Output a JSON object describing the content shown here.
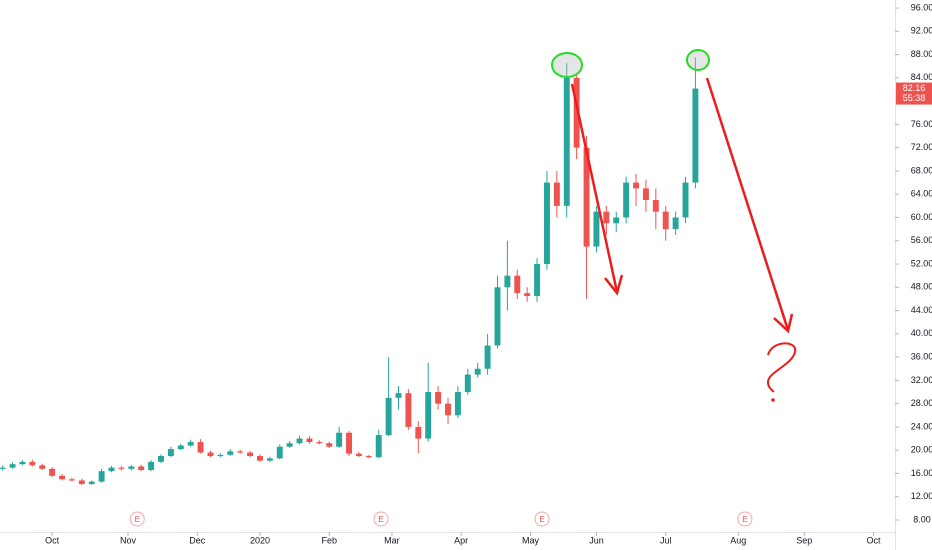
{
  "chart_data": {
    "type": "candlestick",
    "up_color": "#26a69a",
    "down_color": "#ef5350",
    "grid": false,
    "xlim": [
      -15.8,
      255.5
    ],
    "ylim": [
      5.94,
      97.38
    ],
    "xticks": [
      {
        "value": 0,
        "label": "Oct"
      },
      {
        "value": 23,
        "label": "Nov"
      },
      {
        "value": 44,
        "label": "Dec"
      },
      {
        "value": 63,
        "label": "2020"
      },
      {
        "value": 84,
        "label": "Feb"
      },
      {
        "value": 103,
        "label": "Mar"
      },
      {
        "value": 124,
        "label": "Apr"
      },
      {
        "value": 145,
        "label": "May"
      },
      {
        "value": 165,
        "label": "Jun"
      },
      {
        "value": 186,
        "label": "Jul"
      },
      {
        "value": 208,
        "label": "Aug"
      },
      {
        "value": 228,
        "label": "Sep"
      },
      {
        "value": 249,
        "label": "Oct"
      }
    ],
    "yticks": [
      {
        "value": 8,
        "label": "8.00"
      },
      {
        "value": 12,
        "label": "12.00"
      },
      {
        "value": 16,
        "label": "16.00"
      },
      {
        "value": 20,
        "label": "20.00"
      },
      {
        "value": 24,
        "label": "24.00"
      },
      {
        "value": 28,
        "label": "28.00"
      },
      {
        "value": 32,
        "label": "32.00"
      },
      {
        "value": 36,
        "label": "36.00"
      },
      {
        "value": 40,
        "label": "40.00"
      },
      {
        "value": 44,
        "label": "44.00"
      },
      {
        "value": 48,
        "label": "48.00"
      },
      {
        "value": 52,
        "label": "52.00"
      },
      {
        "value": 56,
        "label": "56.00"
      },
      {
        "value": 60,
        "label": "60.00"
      },
      {
        "value": 64,
        "label": "64.00"
      },
      {
        "value": 68,
        "label": "68.00"
      },
      {
        "value": 72,
        "label": "72.00"
      },
      {
        "value": 76,
        "label": "76.00"
      },
      {
        "value": 80,
        "label": "80.00"
      },
      {
        "value": 84,
        "label": "84.00"
      },
      {
        "value": 88,
        "label": "88.00"
      },
      {
        "value": 92,
        "label": "92.00"
      },
      {
        "value": 96,
        "label": "96.00"
      }
    ],
    "x": [
      -15,
      -12,
      -9,
      -6,
      -3,
      0,
      3,
      6,
      9,
      12,
      15,
      18,
      21,
      24,
      27,
      30,
      33,
      36,
      39,
      42,
      45,
      48,
      51,
      54,
      57,
      60,
      63,
      66,
      69,
      72,
      75,
      78,
      81,
      84,
      87,
      90,
      93,
      96,
      99,
      102,
      105,
      108,
      111,
      114,
      117,
      120,
      123,
      126,
      129,
      132,
      135,
      138,
      141,
      144,
      147,
      150,
      153,
      156,
      159,
      162,
      165,
      168,
      171,
      174,
      177,
      180,
      183,
      186,
      189,
      192,
      195
    ],
    "open": [
      16.8,
      17.0,
      17.6,
      18.0,
      17.4,
      16.8,
      15.6,
      15.0,
      14.8,
      14.2,
      14.6,
      16.4,
      17.0,
      16.8,
      17.2,
      16.6,
      18.0,
      19.0,
      20.2,
      20.8,
      21.4,
      19.6,
      19.0,
      19.2,
      19.8,
      19.6,
      19.0,
      18.2,
      18.6,
      20.6,
      21.2,
      22.0,
      21.4,
      21.2,
      20.6,
      23.0,
      19.4,
      19.0,
      18.8,
      22.6,
      29.0,
      29.8,
      24.0,
      22.0,
      30.0,
      28.0,
      26.0,
      30.0,
      33.0,
      34.0,
      38.0,
      48.0,
      50.0,
      47.0,
      46.5,
      52.0,
      66.0,
      62.0,
      84.0,
      72.0,
      55.0,
      61.0,
      59.0,
      60.0,
      66.0,
      65.0,
      63.0,
      61.0,
      58.0,
      60.0,
      66.0
    ],
    "high": [
      17.4,
      17.9,
      18.3,
      18.4,
      17.7,
      17.1,
      15.9,
      15.3,
      15.1,
      14.8,
      16.8,
      17.3,
      17.3,
      17.5,
      17.5,
      18.3,
      19.3,
      20.6,
      21.1,
      21.8,
      21.9,
      19.9,
      19.5,
      20.2,
      20.1,
      19.9,
      19.3,
      18.9,
      21.0,
      21.6,
      22.5,
      22.4,
      21.7,
      21.5,
      24.0,
      23.3,
      19.7,
      19.2,
      23.5,
      36.0,
      31.0,
      30.5,
      25.0,
      35.0,
      31.0,
      29.0,
      31.0,
      34.0,
      35.0,
      40.0,
      50.0,
      56.0,
      51.0,
      48.0,
      53.0,
      68.0,
      68.0,
      86.5,
      84.5,
      74.0,
      62.0,
      62.0,
      61.0,
      67.0,
      67.5,
      66.5,
      65.0,
      62.0,
      61.0,
      67.0,
      87.5
    ],
    "low": [
      16.5,
      16.8,
      17.4,
      17.2,
      16.6,
      15.4,
      14.8,
      14.6,
      14.0,
      14.0,
      14.4,
      16.2,
      16.5,
      16.5,
      16.4,
      16.4,
      17.8,
      18.8,
      20.0,
      20.6,
      19.4,
      18.8,
      18.8,
      19.0,
      19.4,
      18.8,
      18.0,
      18.0,
      18.4,
      20.4,
      21.0,
      21.1,
      21.0,
      20.4,
      20.4,
      19.0,
      18.8,
      18.6,
      18.6,
      22.4,
      27.0,
      23.5,
      19.5,
      21.5,
      27.0,
      24.5,
      25.5,
      29.5,
      32.5,
      33.0,
      37.5,
      44.0,
      46.0,
      45.5,
      45.5,
      51.0,
      60.0,
      60.0,
      70.0,
      46.0,
      54.0,
      57.0,
      57.5,
      59.0,
      62.0,
      61.0,
      58.0,
      56.0,
      57.0,
      59.0,
      65.0
    ],
    "close": [
      17.0,
      17.6,
      18.0,
      17.4,
      16.8,
      15.6,
      15.0,
      14.8,
      14.2,
      14.6,
      16.4,
      17.0,
      16.8,
      17.2,
      16.6,
      18.0,
      19.0,
      20.2,
      20.8,
      21.4,
      19.6,
      19.0,
      19.2,
      19.8,
      19.6,
      19.0,
      18.2,
      18.6,
      20.6,
      21.2,
      22.0,
      21.4,
      21.2,
      20.6,
      23.0,
      19.4,
      19.0,
      18.8,
      22.6,
      29.0,
      29.8,
      24.0,
      22.0,
      30.0,
      28.0,
      26.0,
      30.0,
      33.0,
      34.0,
      38.0,
      48.0,
      50.0,
      47.0,
      46.5,
      52.0,
      66.0,
      62.0,
      84.0,
      72.0,
      55.0,
      61.0,
      59.0,
      60.0,
      66.0,
      65.0,
      63.0,
      61.0,
      58.0,
      60.0,
      66.0,
      82.16
    ],
    "last_price": 82.16,
    "countdown": "55:38",
    "events": [
      {
        "x": 25.8,
        "label": "E"
      },
      {
        "x": 99.7,
        "label": "E"
      },
      {
        "x": 148.5,
        "label": "E"
      },
      {
        "x": 210,
        "label": "E"
      }
    ]
  }
}
